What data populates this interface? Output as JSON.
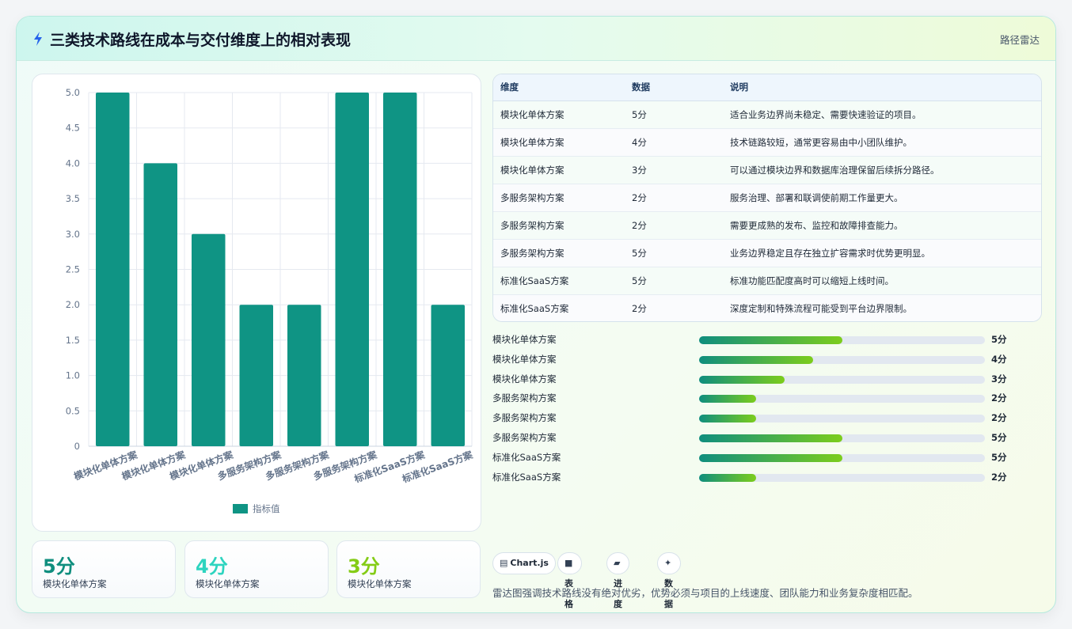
{
  "header": {
    "title": "三类技术路线在成本与交付维度上的相对表现",
    "tag": "路径雷达",
    "icon": "bolt-icon"
  },
  "chart_data": {
    "type": "bar",
    "categories": [
      "模块化单体方案",
      "模块化单体方案",
      "模块化单体方案",
      "多服务架构方案",
      "多服务架构方案",
      "多服务架构方案",
      "标准化SaaS方案",
      "标准化SaaS方案"
    ],
    "series": [
      {
        "name": "指标值",
        "values": [
          5,
          4,
          3,
          2,
          2,
          5,
          5,
          2
        ],
        "color": "#0f9484"
      }
    ],
    "ylim": [
      0,
      5
    ],
    "yticks": [
      "0",
      "0.5",
      "1.0",
      "1.5",
      "2.0",
      "2.5",
      "3.0",
      "3.5",
      "4.0",
      "4.5",
      "5.0"
    ],
    "grid": true,
    "legend": "bottom"
  },
  "stats": [
    {
      "value": "5分",
      "label": "模块化单体方案",
      "color": "#0f8e7e"
    },
    {
      "value": "4分",
      "label": "模块化单体方案",
      "color": "#2dd4bf"
    },
    {
      "value": "3分",
      "label": "模块化单体方案",
      "color": "#84cc16"
    }
  ],
  "table": {
    "headers": [
      "维度",
      "数据",
      "说明"
    ],
    "rows": [
      [
        "模块化单体方案",
        "5分",
        "适合业务边界尚未稳定、需要快速验证的项目。"
      ],
      [
        "模块化单体方案",
        "4分",
        "技术链路较短，通常更容易由中小团队维护。"
      ],
      [
        "模块化单体方案",
        "3分",
        "可以通过模块边界和数据库治理保留后续拆分路径。"
      ],
      [
        "多服务架构方案",
        "2分",
        "服务治理、部署和联调使前期工作量更大。"
      ],
      [
        "多服务架构方案",
        "2分",
        "需要更成熟的发布、监控和故障排查能力。"
      ],
      [
        "多服务架构方案",
        "5分",
        "业务边界稳定且存在独立扩容需求时优势更明显。"
      ],
      [
        "标准化SaaS方案",
        "5分",
        "标准功能匹配度高时可以缩短上线时间。"
      ],
      [
        "标准化SaaS方案",
        "2分",
        "深度定制和特殊流程可能受到平台边界限制。"
      ]
    ]
  },
  "progress": [
    {
      "name": "模块化单体方案",
      "value": 5,
      "label": "5分"
    },
    {
      "name": "模块化单体方案",
      "value": 4,
      "label": "4分"
    },
    {
      "name": "模块化单体方案",
      "value": 3,
      "label": "3分"
    },
    {
      "name": "多服务架构方案",
      "value": 2,
      "label": "2分"
    },
    {
      "name": "多服务架构方案",
      "value": 2,
      "label": "2分"
    },
    {
      "name": "多服务架构方案",
      "value": 5,
      "label": "5分"
    },
    {
      "name": "标准化SaaS方案",
      "value": 5,
      "label": "5分"
    },
    {
      "name": "标准化SaaS方案",
      "value": 2,
      "label": "2分"
    }
  ],
  "progress_max": 10,
  "chips": [
    {
      "icon": "▤",
      "label": "Chart.js"
    },
    {
      "icon": "■",
      "label": "表格"
    },
    {
      "icon": "▰",
      "label": "进度"
    },
    {
      "icon": "✦",
      "label": "数据卡片"
    }
  ],
  "footnote": "雷达图强调技术路线没有绝对优劣，优势必须与项目的上线速度、团队能力和业务复杂度相匹配。"
}
